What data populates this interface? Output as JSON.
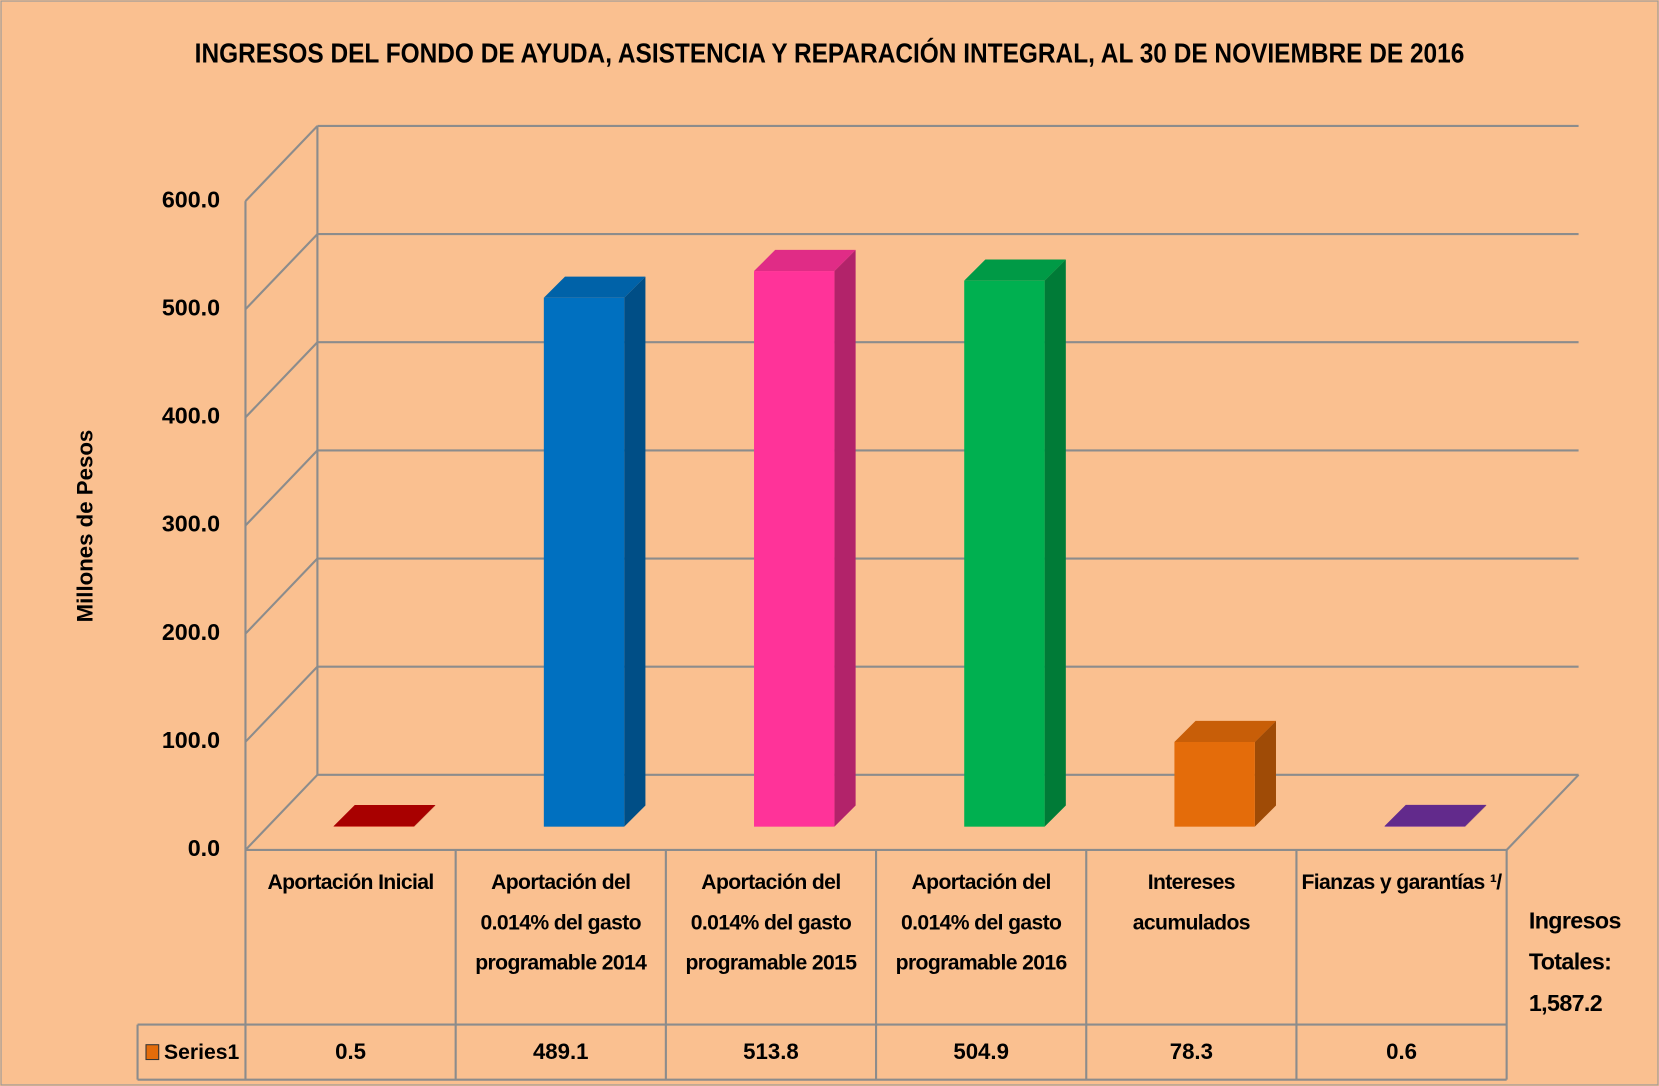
{
  "chart_data": {
    "type": "bar3d",
    "title": "INGRESOS DEL FONDO DE AYUDA, ASISTENCIA Y REPARACIÓN INTEGRAL, AL 30 DE NOVIEMBRE DE 2016",
    "y_label": "Millones de Pesos",
    "categories": [
      "Aportación Inicial",
      "Aportación del 0.014% del gasto programable 2014",
      "Aportación del 0.014% del gasto programable 2015",
      "Aportación del 0.014% del gasto programable 2016",
      "Intereses acumulados",
      "Fianzas y garantías ¹/"
    ],
    "series": [
      {
        "name": "Series1",
        "color": "#E46C0A",
        "values": [
          0.5,
          489.1,
          513.8,
          504.9,
          78.3,
          0.6
        ]
      }
    ],
    "colors": [
      "#C00000",
      "#0070C0",
      "#FF3399",
      "#00B050",
      "#E46C0A",
      "#7030A0"
    ],
    "ylim": [
      0,
      600
    ],
    "yticks": [
      {
        "value": 0,
        "label": "0.0"
      },
      {
        "value": 100,
        "label": "100.0"
      },
      {
        "value": 200,
        "label": "200.0"
      },
      {
        "value": 300,
        "label": "300.0"
      },
      {
        "value": 400,
        "label": "400.0"
      },
      {
        "value": 500,
        "label": "500.0"
      },
      {
        "value": 600,
        "label": "600.0"
      }
    ],
    "grid": true,
    "annotation": "Ingresos Totales: 1,587.2"
  }
}
